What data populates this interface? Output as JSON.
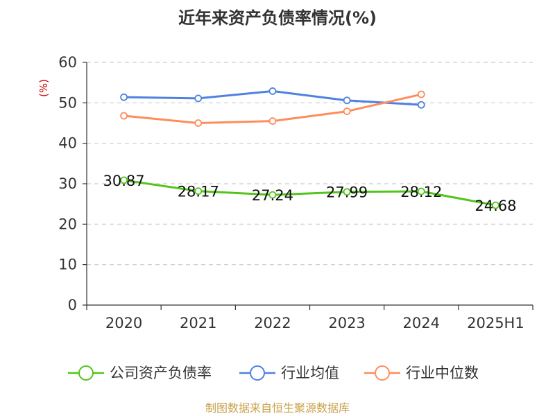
{
  "chart_data": {
    "type": "line",
    "title": "近年来资产负债率情况(%)",
    "ylabel": "(%)",
    "categories": [
      "2020",
      "2021",
      "2022",
      "2023",
      "2024",
      "2025H1"
    ],
    "yticks": [
      "0",
      "10",
      "20",
      "30",
      "40",
      "50",
      "60"
    ],
    "ylim": [
      0,
      60
    ],
    "grid": true,
    "legend_position": "bottom",
    "series": [
      {
        "name": "公司资产负债率",
        "color": "#52c41a",
        "values": [
          30.87,
          28.17,
          27.24,
          27.99,
          28.12,
          24.68
        ],
        "labels": [
          "30.87",
          "28.17",
          "27.24",
          "27.99",
          "28.12",
          "24.68"
        ]
      },
      {
        "name": "行业均值",
        "color": "#4f81e0",
        "values": [
          51.4,
          51.1,
          52.9,
          50.6,
          49.5,
          null
        ]
      },
      {
        "name": "行业中位数",
        "color": "#ff8c5a",
        "values": [
          46.8,
          45.0,
          45.5,
          47.9,
          52.1,
          null
        ]
      }
    ]
  },
  "footer": {
    "source": "制图数据来自恒生聚源数据库"
  }
}
